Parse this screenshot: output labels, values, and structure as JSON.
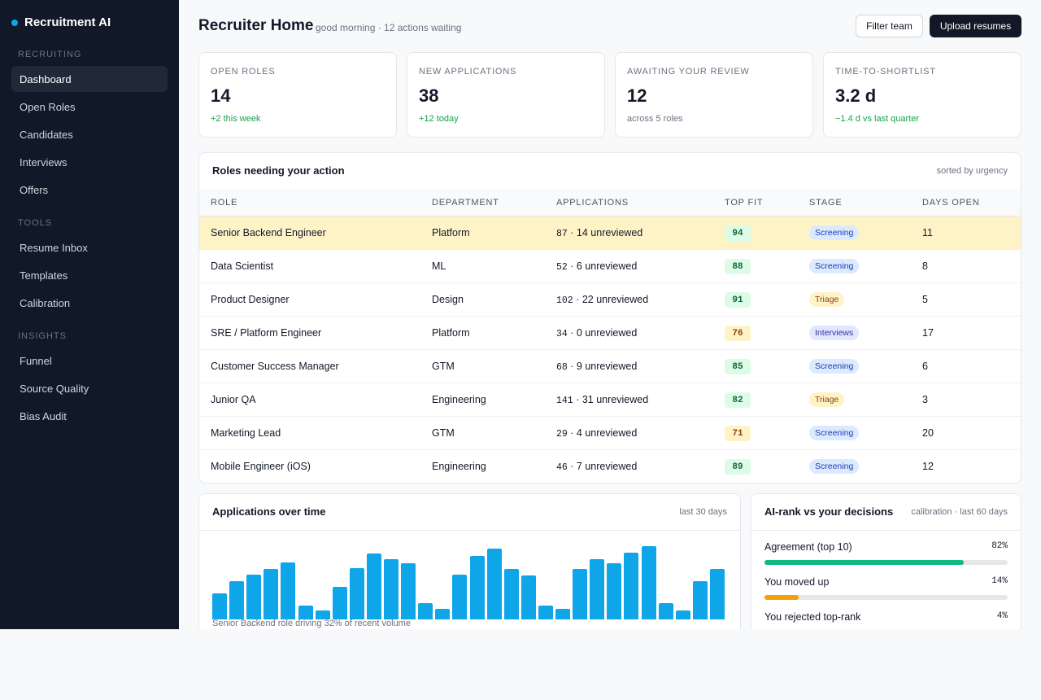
{
  "brand": {
    "name": "Recruitment AI"
  },
  "sidebar": {
    "sections": [
      {
        "title": "RECRUITING",
        "items": [
          "Dashboard",
          "Open Roles",
          "Candidates",
          "Interviews",
          "Offers"
        ]
      },
      {
        "title": "TOOLS",
        "items": [
          "Resume Inbox",
          "Templates",
          "Calibration"
        ]
      },
      {
        "title": "INSIGHTS",
        "items": [
          "Funnel",
          "Source Quality",
          "Bias Audit"
        ]
      }
    ],
    "active": "Dashboard"
  },
  "header": {
    "title": "Recruiter Home",
    "subtitle": "good morning · 12 actions waiting",
    "filter_label": "Filter team",
    "upload_label": "Upload resumes"
  },
  "kpis": [
    {
      "label": "OPEN ROLES",
      "value": "14",
      "delta": "+2 this week",
      "tone": "green"
    },
    {
      "label": "NEW APPLICATIONS",
      "value": "38",
      "delta": "+12 today",
      "tone": "green"
    },
    {
      "label": "AWAITING YOUR REVIEW",
      "value": "12",
      "delta": "across 5 roles",
      "tone": "grey"
    },
    {
      "label": "TIME-TO-SHORTLIST",
      "value": "3.2 d",
      "delta": "−1.4 d vs last quarter",
      "tone": "green"
    }
  ],
  "roles": {
    "title": "Roles needing your action",
    "note": "sorted by urgency",
    "columns": [
      "ROLE",
      "DEPARTMENT",
      "APPLICATIONS",
      "TOP FIT",
      "STAGE",
      "DAYS OPEN"
    ],
    "rows": [
      {
        "role": "Senior Backend Engineer",
        "dept": "Platform",
        "apps": "87",
        "unreviewed": "· 14 unreviewed",
        "fit": "94",
        "stage": "Screening",
        "days": "11",
        "highlight": true
      },
      {
        "role": "Data Scientist",
        "dept": "ML",
        "apps": "52",
        "unreviewed": "· 6 unreviewed",
        "fit": "88",
        "stage": "Screening",
        "days": "8"
      },
      {
        "role": "Product Designer",
        "dept": "Design",
        "apps": "102",
        "unreviewed": "· 22 unreviewed",
        "fit": "91",
        "stage": "Triage",
        "days": "5"
      },
      {
        "role": "SRE / Platform Engineer",
        "dept": "Platform",
        "apps": "34",
        "unreviewed": "· 0 unreviewed",
        "fit": "76",
        "stage": "Interviews",
        "days": "17"
      },
      {
        "role": "Customer Success Manager",
        "dept": "GTM",
        "apps": "68",
        "unreviewed": "· 9 unreviewed",
        "fit": "85",
        "stage": "Screening",
        "days": "6"
      },
      {
        "role": "Junior QA",
        "dept": "Engineering",
        "apps": "141",
        "unreviewed": "· 31 unreviewed",
        "fit": "82",
        "stage": "Triage",
        "days": "3"
      },
      {
        "role": "Marketing Lead",
        "dept": "GTM",
        "apps": "29",
        "unreviewed": "· 4 unreviewed",
        "fit": "71",
        "stage": "Screening",
        "days": "20"
      },
      {
        "role": "Mobile Engineer (iOS)",
        "dept": "Engineering",
        "apps": "46",
        "unreviewed": "· 7 unreviewed",
        "fit": "89",
        "stage": "Screening",
        "days": "12"
      }
    ]
  },
  "applications_chart": {
    "title": "Applications over time",
    "note": "last 30 days",
    "caption": "Senior Backend role driving 32% of recent volume"
  },
  "chart_data": {
    "type": "bar",
    "title": "Applications over time",
    "values": [
      24,
      35,
      41,
      46,
      52,
      13,
      8,
      30,
      47,
      60,
      55,
      51,
      15,
      10,
      41,
      58,
      65,
      46,
      40,
      13,
      10,
      46,
      55,
      51,
      61,
      67,
      15,
      8,
      35,
      46
    ],
    "color": "#0ea5e9"
  },
  "calibration": {
    "title": "AI-rank vs your decisions",
    "note": "calibration · last 60 days",
    "rows": [
      {
        "label": "Agreement (top 10)",
        "pct": "82%",
        "value": 82,
        "color": "#10b981"
      },
      {
        "label": "You moved up",
        "pct": "14%",
        "value": 14,
        "color": "#f59e0b"
      },
      {
        "label": "You rejected top-rank",
        "pct": "4%",
        "value": 4,
        "color": "#ef4444"
      }
    ]
  }
}
